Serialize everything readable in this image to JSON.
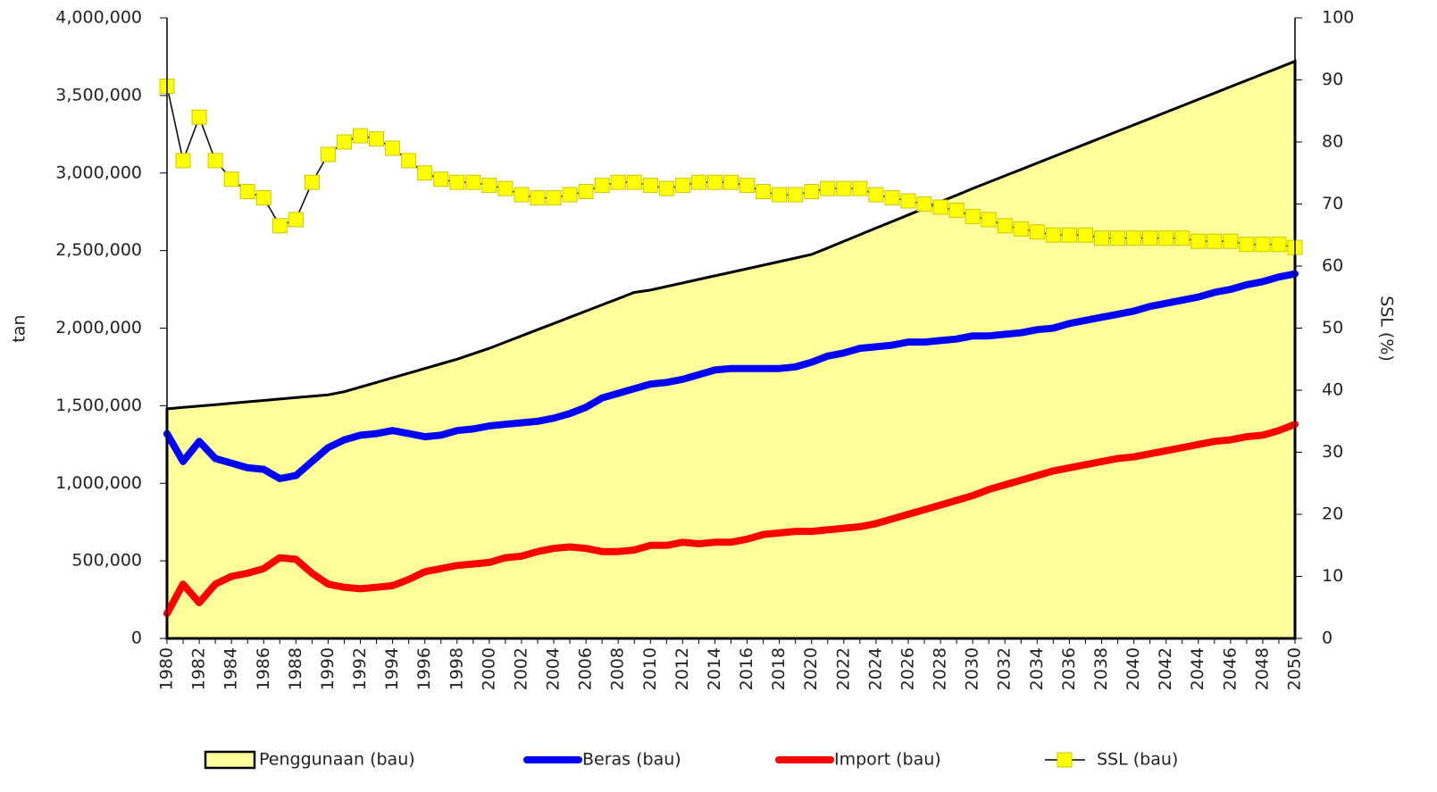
{
  "chart_data": {
    "type": "combo",
    "y_label": "tan",
    "y2_label": "SSL (%)",
    "categories": [
      "1980",
      null,
      "1982",
      null,
      "1984",
      null,
      "1986",
      null,
      "1988",
      null,
      "1990",
      null,
      "1992",
      null,
      "1994",
      null,
      "1996",
      null,
      "1998",
      null,
      "2000",
      null,
      "2002",
      null,
      "2004",
      null,
      "2006",
      null,
      "2008",
      null,
      "2010",
      null,
      "2012",
      null,
      "2014",
      null,
      "2016",
      null,
      "2018",
      null,
      "2020",
      null,
      "2022",
      null,
      "2024",
      null,
      "2026",
      null,
      "2028",
      null,
      "2030",
      null,
      "2032",
      null,
      "2034",
      null,
      "2036",
      null,
      "2038",
      null,
      "2040",
      null,
      "2042",
      null,
      "2044",
      null,
      "2046",
      null,
      "2048",
      null,
      "2050"
    ],
    "series": [
      {
        "name": "Penggunaan (bau)",
        "kind": "area",
        "color": "#ffff99",
        "values": [
          1480000,
          1489000,
          1498000,
          1507000,
          1516000,
          1525000,
          1534000,
          1543000,
          1552000,
          1561000,
          1570000,
          1590000,
          1620000,
          1650000,
          1680000,
          1710000,
          1740000,
          1770000,
          1800000,
          1835000,
          1870000,
          1910000,
          1950000,
          1990000,
          2030000,
          2070000,
          2110000,
          2150000,
          2190000,
          2230000,
          2245000,
          2268000,
          2291000,
          2314000,
          2337000,
          2360000,
          2383000,
          2406000,
          2429000,
          2452000,
          2475000,
          2517000,
          2560000,
          2602000,
          2645000,
          2687000,
          2730000,
          2772000,
          2815000,
          2857000,
          2900000,
          2941000,
          2982000,
          3023000,
          3064000,
          3105000,
          3146000,
          3187000,
          3228000,
          3269000,
          3310000,
          3351000,
          3392000,
          3433000,
          3474000,
          3515000,
          3556000,
          3597000,
          3638000,
          3679000,
          3720000
        ]
      },
      {
        "name": "Beras (bau)",
        "kind": "line",
        "color": "#0000ff",
        "values": [
          1320000,
          1140000,
          1270000,
          1160000,
          1130000,
          1100000,
          1090000,
          1030000,
          1050000,
          1140000,
          1230000,
          1280000,
          1310000,
          1320000,
          1340000,
          1320000,
          1300000,
          1310000,
          1340000,
          1350000,
          1370000,
          1380000,
          1390000,
          1400000,
          1420000,
          1450000,
          1490000,
          1550000,
          1580000,
          1610000,
          1640000,
          1650000,
          1670000,
          1700000,
          1730000,
          1740000,
          1740000,
          1740000,
          1740000,
          1750000,
          1780000,
          1820000,
          1840000,
          1870000,
          1880000,
          1890000,
          1910000,
          1910000,
          1920000,
          1930000,
          1950000,
          1950000,
          1960000,
          1970000,
          1990000,
          2000000,
          2030000,
          2050000,
          2070000,
          2090000,
          2110000,
          2140000,
          2160000,
          2180000,
          2200000,
          2230000,
          2250000,
          2280000,
          2300000,
          2330000,
          2350000
        ]
      },
      {
        "name": "Import (bau)",
        "kind": "line",
        "color": "#ff0000",
        "values": [
          160000,
          350000,
          230000,
          350000,
          400000,
          420000,
          450000,
          520000,
          510000,
          420000,
          350000,
          330000,
          320000,
          330000,
          340000,
          380000,
          430000,
          450000,
          470000,
          480000,
          490000,
          520000,
          530000,
          560000,
          580000,
          590000,
          580000,
          560000,
          560000,
          570000,
          600000,
          600000,
          620000,
          610000,
          620000,
          620000,
          640000,
          670000,
          680000,
          690000,
          690000,
          700000,
          710000,
          720000,
          740000,
          770000,
          800000,
          830000,
          860000,
          890000,
          920000,
          960000,
          990000,
          1020000,
          1050000,
          1080000,
          1100000,
          1120000,
          1140000,
          1160000,
          1170000,
          1190000,
          1210000,
          1230000,
          1250000,
          1270000,
          1280000,
          1300000,
          1310000,
          1340000,
          1380000
        ]
      },
      {
        "name": "SSL (bau)",
        "kind": "marker-line",
        "axis": "y2",
        "color": "#ffff00",
        "values": [
          89,
          77,
          84,
          77,
          74,
          72,
          71,
          66.5,
          67.5,
          73.5,
          78,
          80,
          81,
          80.5,
          79,
          77,
          75,
          74,
          73.5,
          73.5,
          73,
          72.5,
          71.5,
          71,
          71,
          71.5,
          72,
          73,
          73.5,
          73.5,
          73,
          72.5,
          73,
          73.5,
          73.5,
          73.5,
          73,
          72,
          71.5,
          71.5,
          72,
          72.5,
          72.5,
          72.5,
          71.5,
          71,
          70.5,
          70,
          69.5,
          69,
          68,
          67.5,
          66.5,
          66,
          65.5,
          65,
          65,
          65,
          64.5,
          64.5,
          64.5,
          64.5,
          64.5,
          64.5,
          64,
          64,
          64,
          63.5,
          63.5,
          63.5,
          63
        ]
      }
    ],
    "ylim": [
      0,
      4000000
    ],
    "yticks": [
      0,
      {
        "value": 500000,
        "label": "500,000"
      },
      {
        "value": 1000000,
        "label": "1,000,000"
      },
      {
        "value": 1500000,
        "label": "1,500,000"
      },
      {
        "value": 2000000,
        "label": "2,000,000"
      },
      {
        "value": 2500000,
        "label": "2,500,000"
      },
      {
        "value": 3000000,
        "label": "3,000,000"
      },
      {
        "value": 3500000,
        "label": "3,500,000"
      },
      {
        "value": 4000000,
        "label": "4,000,000"
      }
    ],
    "y2lim": [
      0,
      100
    ],
    "y2ticks": [
      0,
      10,
      20,
      30,
      40,
      50,
      60,
      70,
      80,
      90,
      100
    ],
    "grid": false,
    "legend": "bottom"
  }
}
